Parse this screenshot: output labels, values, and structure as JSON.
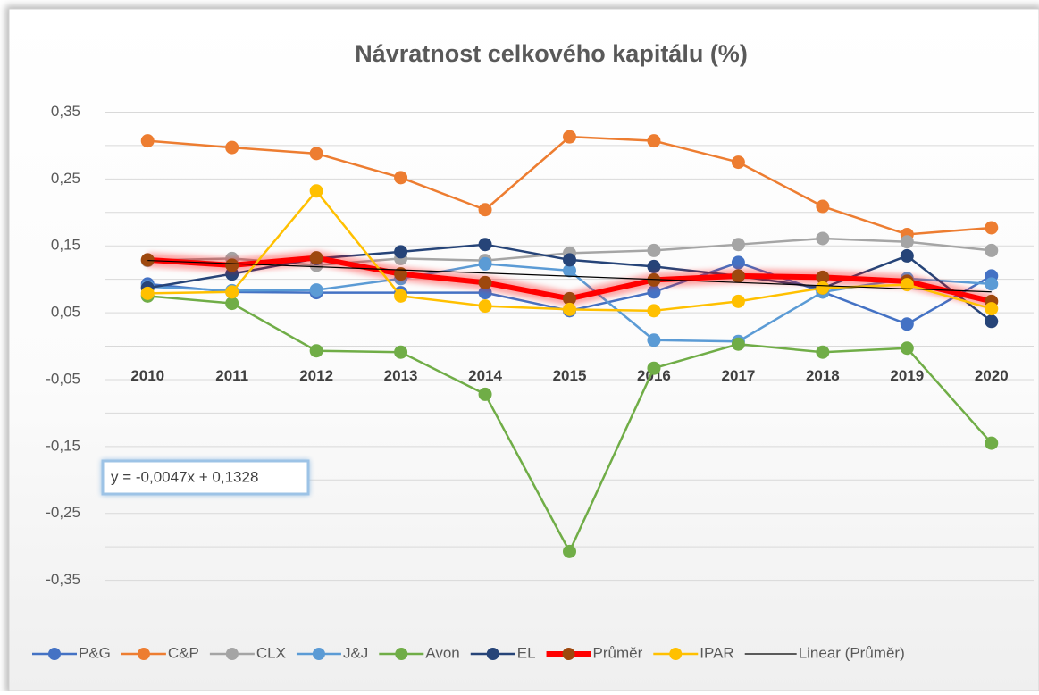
{
  "chart_data": {
    "type": "line",
    "title": "Návratnost celkového kapitálu (%)",
    "categories": [
      "2010",
      "2011",
      "2012",
      "2013",
      "2014",
      "2015",
      "2016",
      "2017",
      "2018",
      "2019",
      "2020"
    ],
    "series": [
      {
        "name": "P&G",
        "color": "#4472c4",
        "values": [
          0.093,
          0.081,
          0.08,
          0.08,
          0.08,
          0.053,
          0.081,
          0.125,
          0.081,
          0.033,
          0.105
        ]
      },
      {
        "name": "C&P",
        "color": "#ed7d31",
        "values": [
          0.307,
          0.297,
          0.288,
          0.252,
          0.204,
          0.313,
          0.307,
          0.275,
          0.209,
          0.167,
          0.177
        ]
      },
      {
        "name": "CLX",
        "color": "#a5a5a5",
        "values": [
          0.128,
          0.131,
          0.121,
          0.131,
          0.128,
          0.139,
          0.143,
          0.152,
          0.161,
          0.156,
          0.143
        ]
      },
      {
        "name": "J&J",
        "color": "#5b9bd5",
        "values": [
          0.089,
          0.083,
          0.084,
          0.101,
          0.123,
          0.113,
          0.009,
          0.007,
          0.081,
          0.101,
          0.093
        ]
      },
      {
        "name": "Avon",
        "color": "#70ad47",
        "values": [
          0.075,
          0.064,
          -0.007,
          -0.009,
          -0.072,
          -0.307,
          -0.033,
          0.003,
          -0.009,
          -0.003,
          -0.145
        ]
      },
      {
        "name": "EL",
        "color": "#264478",
        "values": [
          0.087,
          0.108,
          0.131,
          0.141,
          0.152,
          0.129,
          0.119,
          0.105,
          0.087,
          0.135,
          0.037
        ]
      },
      {
        "name": "Průměr",
        "color": "#ff0000",
        "marker_color": "#9e480e",
        "values": [
          0.129,
          0.121,
          0.132,
          0.108,
          0.095,
          0.071,
          0.099,
          0.105,
          0.103,
          0.097,
          0.067
        ]
      },
      {
        "name": "IPAR",
        "color": "#ffc000",
        "values": [
          0.079,
          0.081,
          0.232,
          0.075,
          0.06,
          0.055,
          0.053,
          0.067,
          0.087,
          0.092,
          0.056
        ]
      }
    ],
    "trendline": {
      "name": "Linear (Průměr)",
      "color": "#000000",
      "slope": -0.0047,
      "intercept": 0.1328,
      "label": "y = -0,0047x + 0,1328"
    },
    "ylim": [
      -0.4,
      0.4
    ],
    "yticks": [
      {
        "value": 0.35,
        "label": "0,35"
      },
      {
        "value": 0.25,
        "label": "0,25"
      },
      {
        "value": 0.15,
        "label": "0,15"
      },
      {
        "value": 0.05,
        "label": "0,05"
      },
      {
        "value": -0.05,
        "label": "-0,05"
      },
      {
        "value": -0.15,
        "label": "-0,15"
      },
      {
        "value": -0.25,
        "label": "-0,25"
      },
      {
        "value": -0.35,
        "label": "-0,35"
      }
    ],
    "minor_yticks": [
      0.3,
      0.2,
      0.1,
      0,
      -0.1,
      -0.2,
      -0.3
    ],
    "grid": true,
    "legend": "bottom"
  }
}
